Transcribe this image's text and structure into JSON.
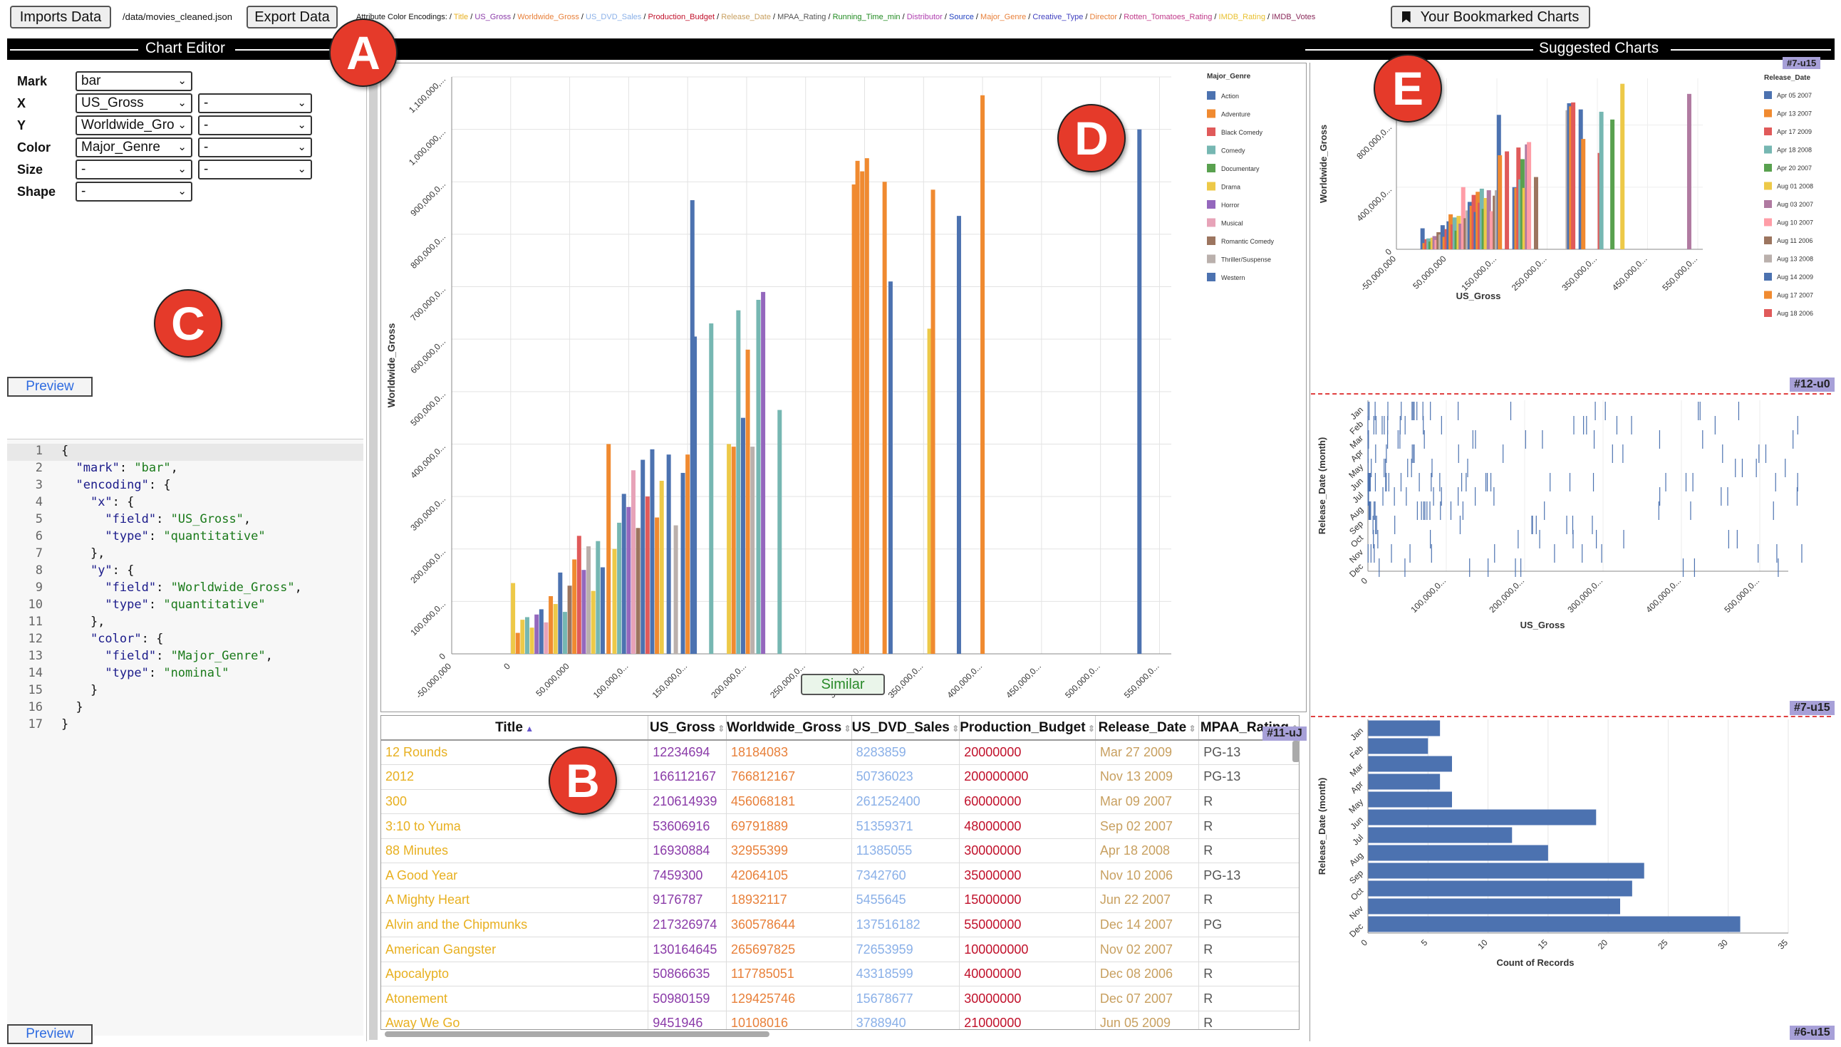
{
  "toolbar": {
    "import_label": "Imports Data",
    "path": "/data/movies_cleaned.json",
    "export_label": "Export Data",
    "encodings_label": "Attribute Color Encodings:",
    "bookmark_label": "Your Bookmarked Charts",
    "attributes": [
      {
        "name": "Title",
        "color": "#e8b020"
      },
      {
        "name": "US_Gross",
        "color": "#8a3aa8"
      },
      {
        "name": "Worldwide_Gross",
        "color": "#e8803a"
      },
      {
        "name": "US_DVD_Sales",
        "color": "#8ab0e8"
      },
      {
        "name": "Production_Budget",
        "color": "#c0102a"
      },
      {
        "name": "Release_Date",
        "color": "#c8a060"
      },
      {
        "name": "MPAA_Rating",
        "color": "#555555"
      },
      {
        "name": "Running_Time_min",
        "color": "#208a20"
      },
      {
        "name": "Distributor",
        "color": "#b040b0"
      },
      {
        "name": "Source",
        "color": "#2040c0"
      },
      {
        "name": "Major_Genre",
        "color": "#e8803a"
      },
      {
        "name": "Creative_Type",
        "color": "#4040c0"
      },
      {
        "name": "Director",
        "color": "#e8803a"
      },
      {
        "name": "Rotten_Tomatoes_Rating",
        "color": "#c03a8a"
      },
      {
        "name": "IMDB_Rating",
        "color": "#e8c030"
      },
      {
        "name": "IMDB_Votes",
        "color": "#8a2a5a"
      }
    ]
  },
  "panels": {
    "editor_title": "Chart Editor",
    "suggest_title": "Suggested Charts"
  },
  "markers": {
    "a": "A",
    "b": "B",
    "c": "C",
    "d": "D",
    "e": "E"
  },
  "editor": {
    "rows": [
      {
        "label": "Mark",
        "value": "bar",
        "extra": null
      },
      {
        "label": "X",
        "value": "US_Gross",
        "extra": "-"
      },
      {
        "label": "Y",
        "value": "Worldwide_Gro",
        "extra": "-"
      },
      {
        "label": "Color",
        "value": "Major_Genre",
        "extra": "-"
      },
      {
        "label": "Size",
        "value": "-",
        "extra": "-"
      },
      {
        "label": "Shape",
        "value": "-",
        "extra": null
      }
    ],
    "preview_label": "Preview",
    "code_lines": [
      "{",
      "  \"mark\": \"bar\",",
      "  \"encoding\": {",
      "    \"x\": {",
      "      \"field\": \"US_Gross\",",
      "      \"type\": \"quantitative\"",
      "    },",
      "    \"y\": {",
      "      \"field\": \"Worldwide_Gross\",",
      "      \"type\": \"quantitative\"",
      "    },",
      "    \"color\": {",
      "      \"field\": \"Major_Genre\",",
      "      \"type\": \"nominal\"",
      "    }",
      "  }",
      "}"
    ]
  },
  "main_chart": {
    "similar_label": "Similar",
    "legend_title": "Major_Genre",
    "genres": [
      {
        "name": "Action",
        "color": "#4c72b0"
      },
      {
        "name": "Adventure",
        "color": "#f08a30"
      },
      {
        "name": "Black Comedy",
        "color": "#e05a5a"
      },
      {
        "name": "Comedy",
        "color": "#76b7b2"
      },
      {
        "name": "Documentary",
        "color": "#59a14f"
      },
      {
        "name": "Drama",
        "color": "#edc948"
      },
      {
        "name": "Horror",
        "color": "#9467bd"
      },
      {
        "name": "Musical",
        "color": "#e7a3b8"
      },
      {
        "name": "Romantic Comedy",
        "color": "#9c755f"
      },
      {
        "name": "Thriller/Suspense",
        "color": "#bab0ac"
      },
      {
        "name": "Western",
        "color": "#4c72b0"
      }
    ]
  },
  "table": {
    "headers": [
      "Title",
      "US_Gross",
      "Worldwide_Gross",
      "US_DVD_Sales",
      "Production_Budget",
      "Release_Date",
      "MPAA_Rating"
    ],
    "rows": [
      [
        "12 Rounds",
        "12234694",
        "18184083",
        "8283859",
        "20000000",
        "Mar 27 2009",
        "PG-13"
      ],
      [
        "2012",
        "166112167",
        "766812167",
        "50736023",
        "200000000",
        "Nov 13 2009",
        "PG-13"
      ],
      [
        "300",
        "210614939",
        "456068181",
        "261252400",
        "60000000",
        "Mar 09 2007",
        "R"
      ],
      [
        "3:10 to Yuma",
        "53606916",
        "69791889",
        "51359371",
        "48000000",
        "Sep 02 2007",
        "R"
      ],
      [
        "88 Minutes",
        "16930884",
        "32955399",
        "11385055",
        "30000000",
        "Apr 18 2008",
        "R"
      ],
      [
        "A Good Year",
        "7459300",
        "42064105",
        "7342760",
        "35000000",
        "Nov 10 2006",
        "PG-13"
      ],
      [
        "A Mighty Heart",
        "9176787",
        "18932117",
        "5455645",
        "15000000",
        "Jun 22 2007",
        "R"
      ],
      [
        "Alvin and the Chipmunks",
        "217326974",
        "360578644",
        "137516182",
        "55000000",
        "Dec 14 2007",
        "PG"
      ],
      [
        "American Gangster",
        "130164645",
        "265697825",
        "72653959",
        "100000000",
        "Nov 02 2007",
        "R"
      ],
      [
        "Apocalypto",
        "50866635",
        "117785051",
        "43318599",
        "40000000",
        "Dec 08 2006",
        "R"
      ],
      [
        "Atonement",
        "50980159",
        "129425746",
        "15678677",
        "30000000",
        "Dec 07 2007",
        "R"
      ],
      [
        "Away We Go",
        "9451946",
        "10108016",
        "3788940",
        "21000000",
        "Jun 05 2009",
        "R"
      ]
    ],
    "tag": "#11-uJ"
  },
  "suggestions": {
    "chart1_tag": "#7-u15",
    "chart2_tag": "#12-u0",
    "chart3_tag": "#7-u15",
    "chart4_tag": "#6-u15",
    "legend_title": "Release_Date",
    "dates": [
      "Apr 05 2007",
      "Apr 13 2007",
      "Apr 17 2009",
      "Apr 18 2008",
      "Apr 20 2007",
      "Aug 01 2008",
      "Aug 03 2007",
      "Aug 10 2007",
      "Aug 11 2006",
      "Aug 13 2008",
      "Aug 14 2009",
      "Aug 17 2007",
      "Aug 18 2006"
    ],
    "date_colors": [
      "#4c72b0",
      "#f08a30",
      "#e05a5a",
      "#76b7b2",
      "#59a14f",
      "#edc948",
      "#b07aa1",
      "#ff9da7",
      "#9c755f",
      "#bab0ac",
      "#4c72b0",
      "#f08a30",
      "#e05a5a"
    ]
  },
  "chart_data": [
    {
      "type": "bar",
      "title": "",
      "xlabel": "US_Gross",
      "ylabel": "Worldwide_Gross",
      "x_ticks": [
        "-50,000,000",
        "0",
        "50,000,000",
        "100,000,0...",
        "150,000,0...",
        "200,000,0...",
        "250,000,0...",
        "300,000,0...",
        "350,000,0...",
        "400,000,0...",
        "450,000,0...",
        "500,000,0...",
        "550,000,0..."
      ],
      "y_ticks": [
        "0",
        "100,000,0...",
        "200,000,0...",
        "300,000,0...",
        "400,000,0...",
        "500,000,0...",
        "600,000,0...",
        "700,000,0...",
        "800,000,0...",
        "900,000,0...",
        "1,000,000,...",
        "1,100,000,..."
      ],
      "xlim": [
        -50000000,
        560000000
      ],
      "ylim": [
        0,
        1100000000
      ],
      "legend": "top-right",
      "bars": [
        {
          "x": 2000000,
          "y": 135000000,
          "g": 5
        },
        {
          "x": 6000000,
          "y": 40000000,
          "g": 1
        },
        {
          "x": 10000000,
          "y": 65000000,
          "g": 5
        },
        {
          "x": 14000000,
          "y": 70000000,
          "g": 3
        },
        {
          "x": 18000000,
          "y": 50000000,
          "g": 5
        },
        {
          "x": 22000000,
          "y": 75000000,
          "g": 6
        },
        {
          "x": 26000000,
          "y": 85000000,
          "g": 0
        },
        {
          "x": 30000000,
          "y": 60000000,
          "g": 7
        },
        {
          "x": 34000000,
          "y": 110000000,
          "g": 1
        },
        {
          "x": 38000000,
          "y": 95000000,
          "g": 5
        },
        {
          "x": 42000000,
          "y": 155000000,
          "g": 0
        },
        {
          "x": 46000000,
          "y": 80000000,
          "g": 3
        },
        {
          "x": 50000000,
          "y": 130000000,
          "g": 8
        },
        {
          "x": 54000000,
          "y": 180000000,
          "g": 1
        },
        {
          "x": 58000000,
          "y": 225000000,
          "g": 2
        },
        {
          "x": 62000000,
          "y": 160000000,
          "g": 6
        },
        {
          "x": 66000000,
          "y": 205000000,
          "g": 9
        },
        {
          "x": 70000000,
          "y": 120000000,
          "g": 5
        },
        {
          "x": 74000000,
          "y": 215000000,
          "g": 3
        },
        {
          "x": 78000000,
          "y": 165000000,
          "g": 0
        },
        {
          "x": 83000000,
          "y": 400000000,
          "g": 1
        },
        {
          "x": 88000000,
          "y": 200000000,
          "g": 5
        },
        {
          "x": 92000000,
          "y": 250000000,
          "g": 3
        },
        {
          "x": 96000000,
          "y": 305000000,
          "g": 0
        },
        {
          "x": 100000000,
          "y": 280000000,
          "g": 6
        },
        {
          "x": 104000000,
          "y": 350000000,
          "g": 7
        },
        {
          "x": 108000000,
          "y": 240000000,
          "g": 8
        },
        {
          "x": 112000000,
          "y": 370000000,
          "g": 0
        },
        {
          "x": 116000000,
          "y": 300000000,
          "g": 2
        },
        {
          "x": 120000000,
          "y": 390000000,
          "g": 0
        },
        {
          "x": 124000000,
          "y": 260000000,
          "g": 1
        },
        {
          "x": 128000000,
          "y": 330000000,
          "g": 5
        },
        {
          "x": 134000000,
          "y": 380000000,
          "g": 0
        },
        {
          "x": 140000000,
          "y": 245000000,
          "g": 9
        },
        {
          "x": 146000000,
          "y": 345000000,
          "g": 0
        },
        {
          "x": 150000000,
          "y": 380000000,
          "g": 1
        },
        {
          "x": 154000000,
          "y": 865000000,
          "g": 0
        },
        {
          "x": 156000000,
          "y": 605000000,
          "g": 0
        },
        {
          "x": 170000000,
          "y": 630000000,
          "g": 3
        },
        {
          "x": 185000000,
          "y": 400000000,
          "g": 5
        },
        {
          "x": 189000000,
          "y": 395000000,
          "g": 1
        },
        {
          "x": 193000000,
          "y": 655000000,
          "g": 3
        },
        {
          "x": 197000000,
          "y": 450000000,
          "g": 0
        },
        {
          "x": 201000000,
          "y": 580000000,
          "g": 1
        },
        {
          "x": 205000000,
          "y": 395000000,
          "g": 9
        },
        {
          "x": 210000000,
          "y": 675000000,
          "g": 3
        },
        {
          "x": 214000000,
          "y": 690000000,
          "g": 6
        },
        {
          "x": 228000000,
          "y": 465000000,
          "g": 3
        },
        {
          "x": 291000000,
          "y": 895000000,
          "g": 1
        },
        {
          "x": 294000000,
          "y": 940000000,
          "g": 1
        },
        {
          "x": 298000000,
          "y": 920000000,
          "g": 1
        },
        {
          "x": 302000000,
          "y": 945000000,
          "g": 1
        },
        {
          "x": 317000000,
          "y": 900000000,
          "g": 1
        },
        {
          "x": 322000000,
          "y": 710000000,
          "g": 0
        },
        {
          "x": 355000000,
          "y": 620000000,
          "g": 5
        },
        {
          "x": 358000000,
          "y": 885000000,
          "g": 1
        },
        {
          "x": 380000000,
          "y": 835000000,
          "g": 0
        },
        {
          "x": 400000000,
          "y": 1065000000,
          "g": 1
        },
        {
          "x": 533000000,
          "y": 1000000000,
          "g": 0
        }
      ]
    },
    {
      "type": "bar",
      "title": "",
      "xlabel": "US_Gross",
      "ylabel": "Worldwide_Gross",
      "x_ticks": [
        "-50,000,000",
        "50,000,000",
        "150,000,0...",
        "250,000,0...",
        "350,000,0...",
        "450,000,0...",
        "550,000,0..."
      ],
      "y_ticks": [
        "0",
        "400,000,0...",
        "800,000,0..."
      ],
      "xlim": [
        -50000000,
        560000000
      ],
      "ylim": [
        0,
        1100000000
      ]
    },
    {
      "type": "scatter",
      "xlabel": "US_Gross",
      "ylabel": "Release_Date (month)",
      "x_ticks": [
        "0",
        "100,000,0...",
        "200,000,0...",
        "300,000,0...",
        "400,000,0...",
        "500,000,0..."
      ],
      "y_ticks": [
        "Jan",
        "Feb",
        "Mar",
        "Apr",
        "May",
        "Jun",
        "Jul",
        "Aug",
        "Sep",
        "Oct",
        "Nov",
        "Dec"
      ]
    },
    {
      "type": "bar",
      "orientation": "horizontal",
      "xlabel": "Count of Records",
      "ylabel": "Release_Date (month)",
      "categories": [
        "Jan",
        "Feb",
        "Mar",
        "Apr",
        "May",
        "Jun",
        "Jul",
        "Aug",
        "Sep",
        "Oct",
        "Nov",
        "Dec"
      ],
      "values": [
        6,
        5,
        7,
        6,
        7,
        19,
        12,
        15,
        23,
        22,
        21,
        31
      ],
      "x_ticks": [
        "0",
        "5",
        "10",
        "15",
        "20",
        "25",
        "30",
        "35"
      ],
      "xlim": [
        0,
        35
      ]
    }
  ]
}
